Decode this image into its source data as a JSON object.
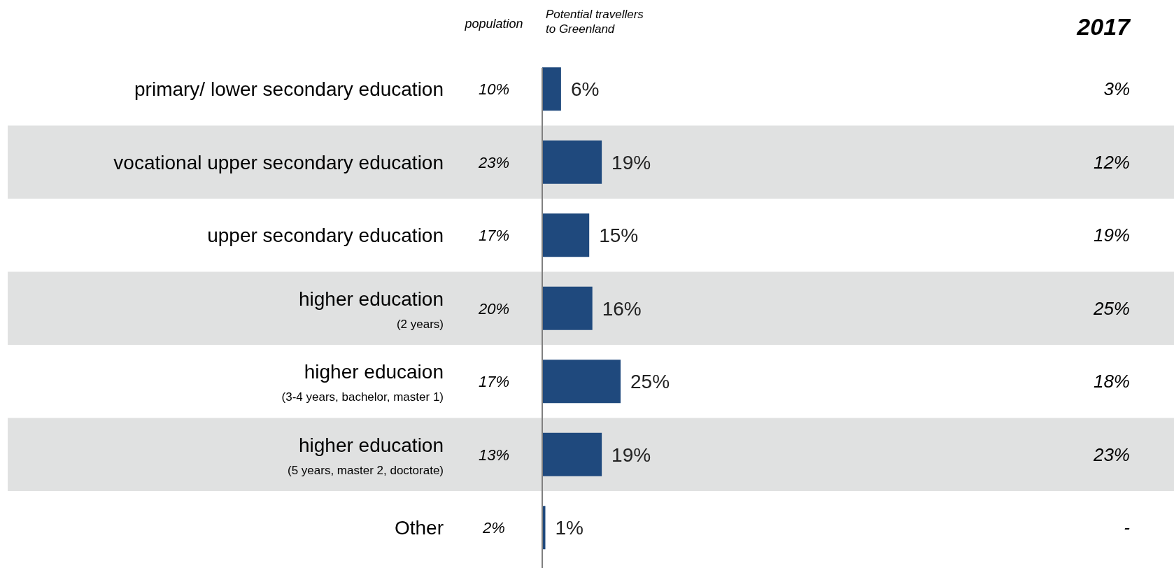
{
  "chart_data": {
    "type": "bar",
    "orientation": "horizontal",
    "xlabel": "Potential travellers\nto Greenland",
    "categories": [
      "primary/ lower secondary education",
      "vocational upper secondary education",
      "upper secondary education",
      "higher education\n(2 years)",
      "higher educaion\n(3-4 years, bachelor, master 1)",
      "higher education\n(5 years, master 2, doctorate)",
      "Other"
    ],
    "values": [
      6,
      19,
      15,
      16,
      25,
      19,
      1
    ],
    "color": "#1f497d",
    "data_labels": true,
    "value_labels": [
      "6%",
      "19%",
      "15%",
      "16%",
      "25%",
      "19%",
      "1%"
    ],
    "annotations": [
      "population",
      "10%",
      "23%",
      "17%",
      "20%",
      "17%",
      "13%",
      "2%",
      "2017",
      "3%",
      "12%",
      "19%",
      "25%",
      "18%",
      "23%",
      "-"
    ]
  }
}
